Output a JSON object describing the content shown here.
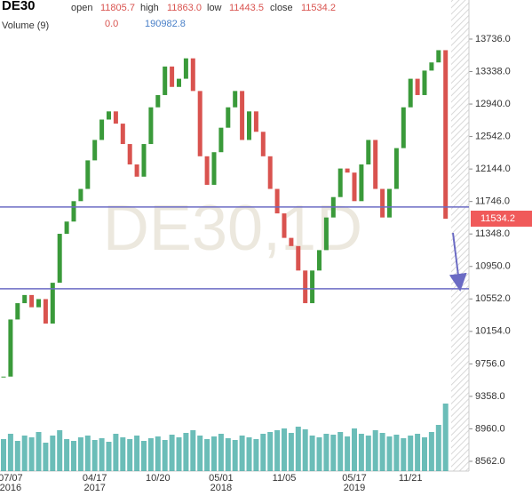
{
  "header": {
    "symbol": "DE30",
    "open_label": "open",
    "open": "11805.7",
    "high_label": "high",
    "high": "11863.0",
    "low_label": "low",
    "low": "11443.5",
    "close_label": "close",
    "close": "11534.2",
    "volume_label": "Volume (9)",
    "volume_value_1": "0.0",
    "volume_value_2": "190982.8"
  },
  "chart_data": {
    "type": "candlestick",
    "watermark": "DE30,1D",
    "categories": [
      null,
      "07/07",
      null,
      null,
      null,
      null,
      null,
      null,
      null,
      null,
      null,
      null,
      null,
      "04/17",
      null,
      null,
      null,
      null,
      null,
      null,
      null,
      null,
      "10/20",
      null,
      null,
      null,
      null,
      null,
      null,
      null,
      null,
      "05/01",
      null,
      null,
      null,
      null,
      null,
      null,
      null,
      null,
      "11/05",
      null,
      null,
      null,
      null,
      null,
      null,
      null,
      null,
      null,
      "05/17",
      null,
      null,
      null,
      null,
      null,
      null,
      null,
      "11/21",
      null,
      null,
      null,
      null,
      null
    ],
    "category_years": [
      null,
      "2016",
      null,
      null,
      null,
      null,
      null,
      null,
      null,
      null,
      null,
      null,
      null,
      "2017",
      null,
      null,
      null,
      null,
      null,
      null,
      null,
      null,
      null,
      null,
      null,
      null,
      null,
      null,
      null,
      null,
      null,
      "2018",
      null,
      null,
      null,
      null,
      null,
      null,
      null,
      null,
      null,
      null,
      null,
      null,
      null,
      null,
      null,
      null,
      null,
      null,
      "2019",
      null,
      null,
      null,
      null,
      null,
      null,
      null,
      null,
      null,
      null,
      null,
      null,
      null
    ],
    "series": [
      {
        "name": "Price",
        "up_color": "#3a9a3a",
        "down_color": "#d9534f",
        "values": [
          9600,
          10300,
          10500,
          10600,
          10450,
          10550,
          10250,
          10750,
          11350,
          11500,
          11750,
          11900,
          12250,
          12500,
          12750,
          12850,
          12700,
          12450,
          12200,
          12050,
          12450,
          12900,
          13050,
          13400,
          13150,
          13250,
          13500,
          13100,
          12300,
          11950,
          12350,
          12650,
          12900,
          13100,
          12500,
          12850,
          12600,
          12300,
          11900,
          11600,
          11300,
          11200,
          10900,
          10500,
          10900,
          11150,
          11550,
          11800,
          12150,
          12100,
          11750,
          12200,
          12500,
          11900,
          11550,
          11900,
          12400,
          12900,
          13250,
          13050,
          13350,
          13450,
          13600,
          11534.2
        ]
      },
      {
        "name": "Volume",
        "axis": "y2",
        "color": "#3aa7a0",
        "values": [
          180000,
          210000,
          170000,
          200000,
          190000,
          220000,
          160000,
          200000,
          230000,
          180000,
          170000,
          190000,
          200000,
          175000,
          185000,
          165000,
          210000,
          190000,
          180000,
          200000,
          170000,
          185000,
          195000,
          175000,
          205000,
          190000,
          215000,
          230000,
          200000,
          180000,
          195000,
          210000,
          185000,
          175000,
          200000,
          190000,
          180000,
          210000,
          220000,
          230000,
          240000,
          215000,
          250000,
          235000,
          200000,
          190000,
          210000,
          205000,
          220000,
          195000,
          240000,
          210000,
          200000,
          230000,
          215000,
          195000,
          205000,
          185000,
          200000,
          210000,
          190000,
          220000,
          260000,
          380000
        ]
      }
    ],
    "ylim": [
      8442,
      14215
    ],
    "yticks": [
      {
        "value": 8562,
        "label": "8562.0"
      },
      {
        "value": 8960,
        "label": "8960.0"
      },
      {
        "value": 9358,
        "label": "9358.0"
      },
      {
        "value": 9756,
        "label": "9756.0"
      },
      {
        "value": 10154,
        "label": "10154.0"
      },
      {
        "value": 10552,
        "label": "10552.0"
      },
      {
        "value": 10950,
        "label": "10950.0"
      },
      {
        "value": 11348,
        "label": "11348.0"
      },
      {
        "value": 11746,
        "label": "11746.0"
      },
      {
        "value": 12144,
        "label": "12144.0"
      },
      {
        "value": 12542,
        "label": "12542.0"
      },
      {
        "value": 12940,
        "label": "12940.0"
      },
      {
        "value": 13338,
        "label": "13338.0"
      },
      {
        "value": 13736,
        "label": "13736.0"
      }
    ],
    "y2lim": [
      0,
      500000
    ],
    "hlines": [
      11678,
      10676
    ],
    "hline_color": "#6b6bc4"
  }
}
